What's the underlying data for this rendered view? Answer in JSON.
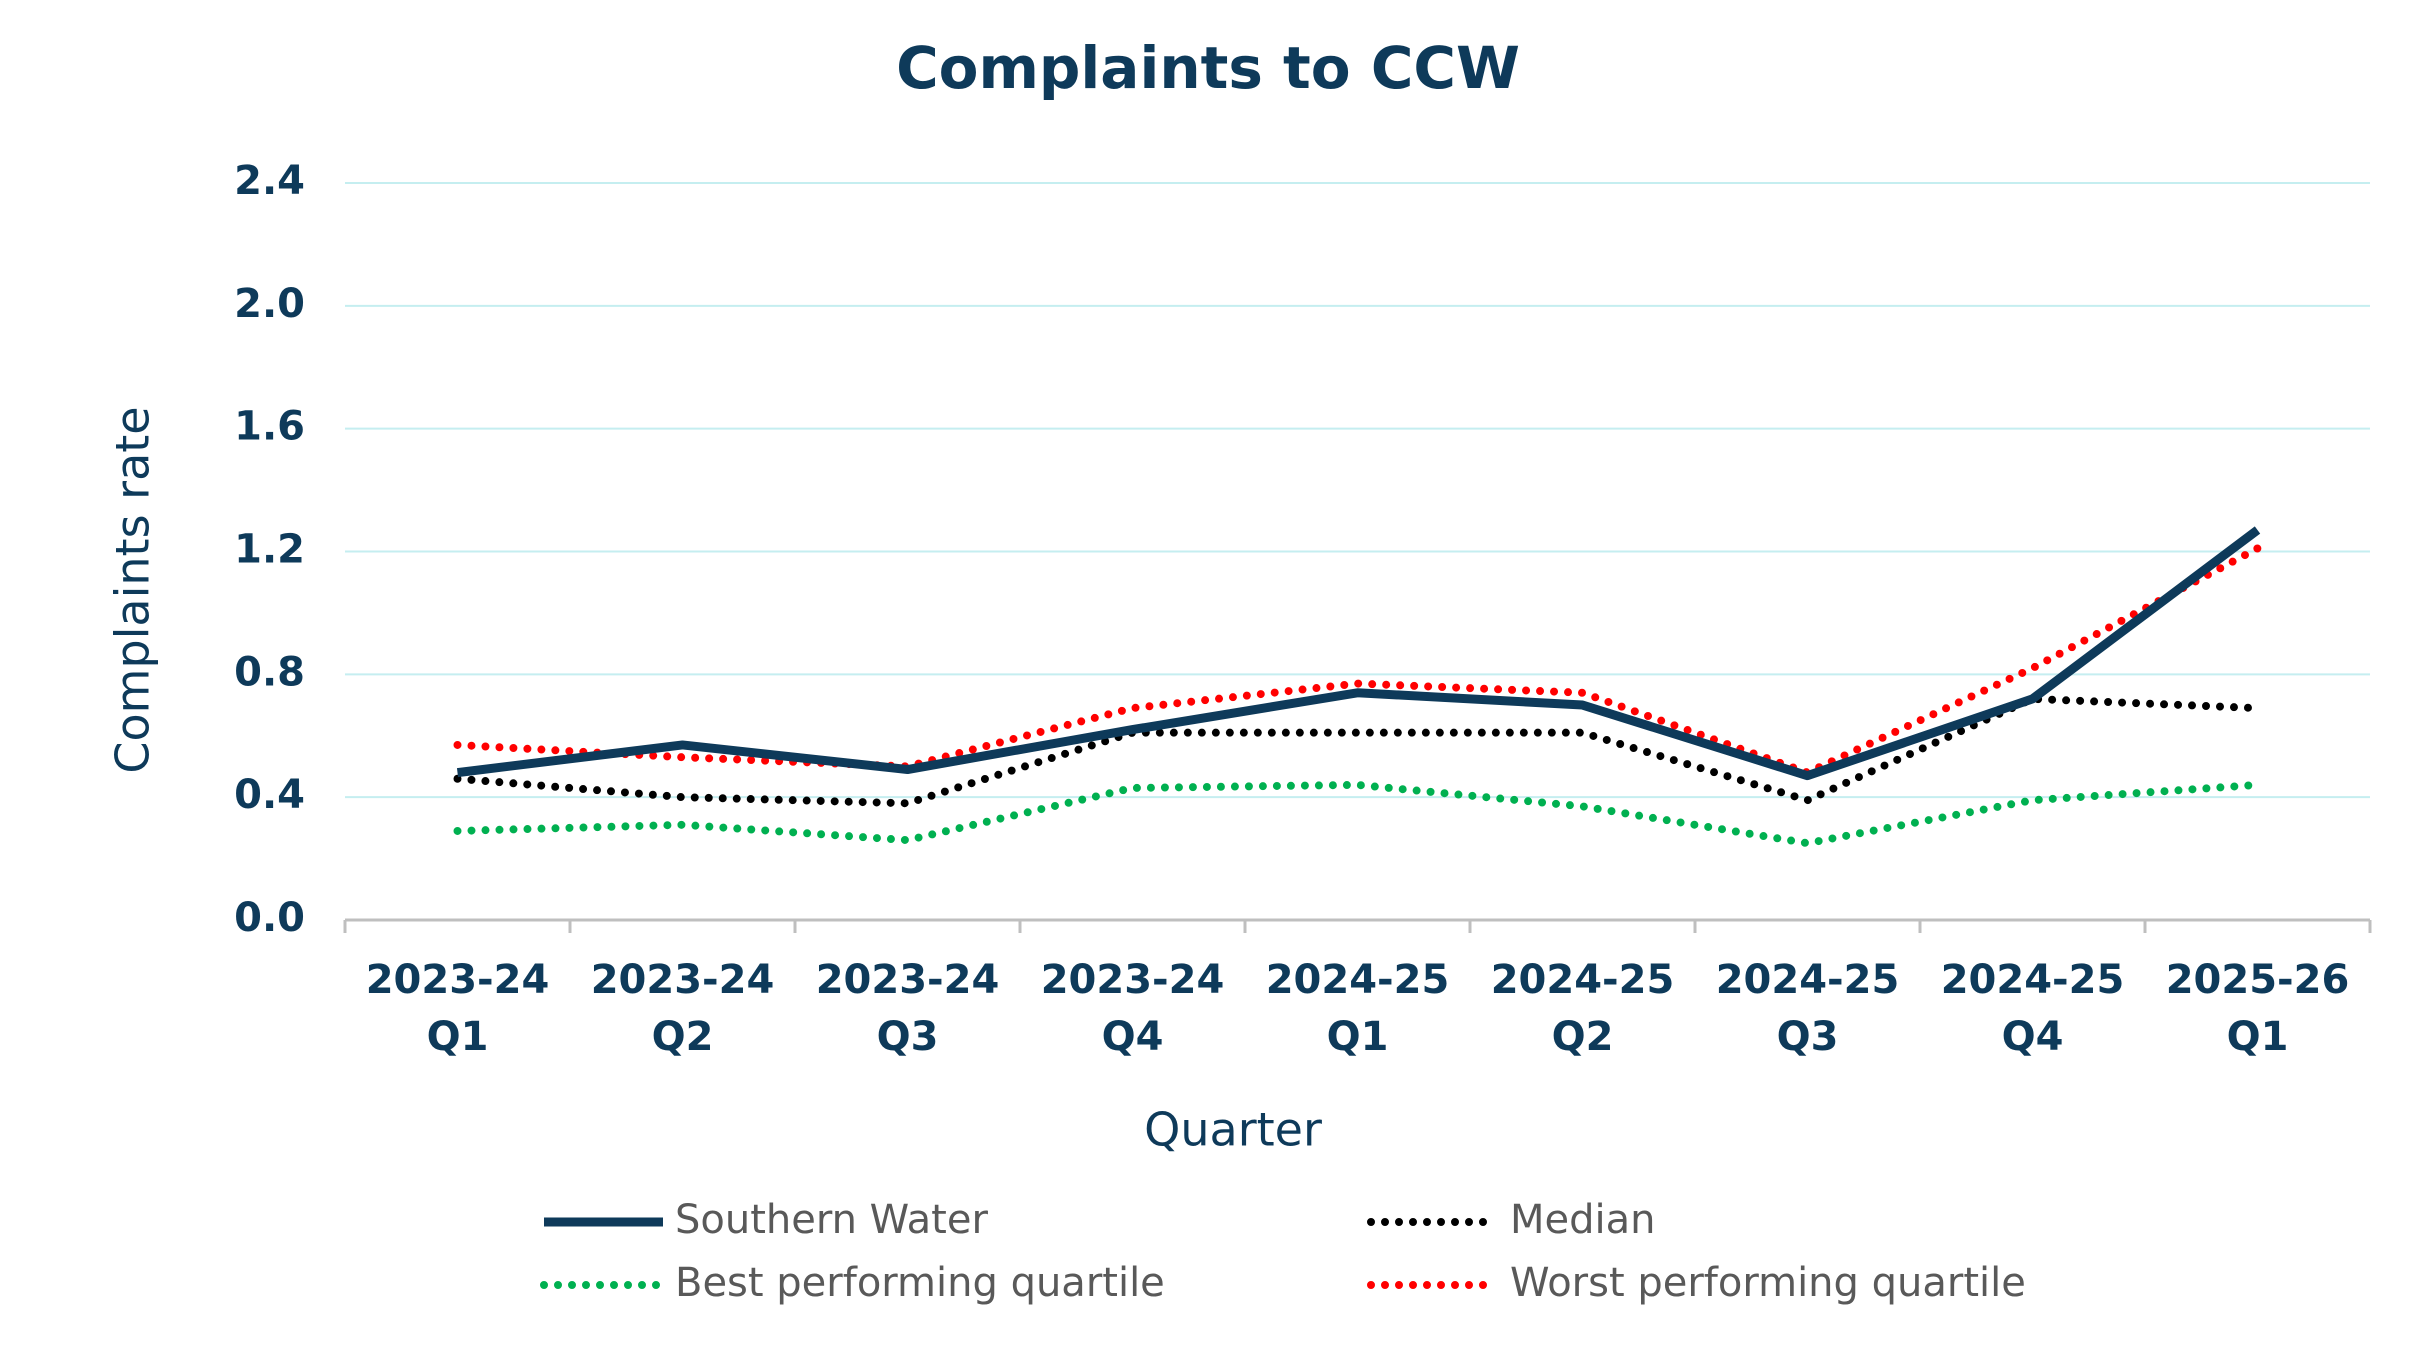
{
  "chart_data": {
    "type": "line",
    "title": "Complaints to CCW",
    "x_label": "Quarter",
    "y_label": "Complaints rate",
    "categories": [
      "2023-24 Q1",
      "2023-24 Q2",
      "2023-24 Q3",
      "2023-24 Q4",
      "2024-25 Q1",
      "2024-25 Q2",
      "2024-25 Q3",
      "2024-25 Q4",
      "2025-26 Q1"
    ],
    "series": [
      {
        "name": "Southern Water",
        "color": "#0e3a5a",
        "style": "solid",
        "values": [
          0.48,
          0.57,
          0.49,
          0.62,
          0.74,
          0.7,
          0.47,
          0.72,
          1.27
        ]
      },
      {
        "name": "Median",
        "color": "#000000",
        "style": "dotted",
        "values": [
          0.46,
          0.4,
          0.38,
          0.61,
          0.61,
          0.61,
          0.39,
          0.72,
          0.69
        ]
      },
      {
        "name": "Best performing quartile",
        "color": "#00b050",
        "style": "dotted",
        "values": [
          0.29,
          0.31,
          0.26,
          0.43,
          0.44,
          0.37,
          0.25,
          0.39,
          0.44
        ]
      },
      {
        "name": "Worst performing quartile",
        "color": "#ff0000",
        "style": "dotted",
        "values": [
          0.57,
          0.53,
          0.5,
          0.69,
          0.77,
          0.74,
          0.48,
          0.82,
          1.21
        ]
      }
    ],
    "ylim": [
      0,
      2.4
    ],
    "yticks": [
      {
        "value": 0,
        "label": "0.0"
      },
      0.4,
      0.8,
      1.2,
      1.6,
      {
        "value": 2,
        "label": "2.0"
      },
      2.4
    ],
    "grid": true,
    "legend": "bottom"
  }
}
